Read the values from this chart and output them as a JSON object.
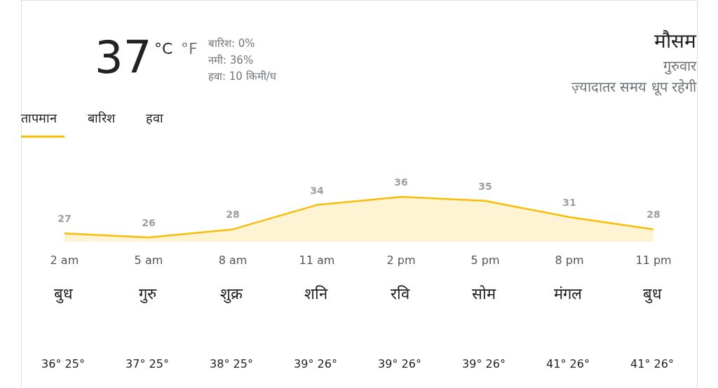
{
  "chart_data": {
    "type": "area",
    "title": "मौसम",
    "subtitle": "गुरुवार",
    "categories": [
      "2 am",
      "5 am",
      "8 am",
      "11 am",
      "2 pm",
      "5 pm",
      "8 pm",
      "11 pm"
    ],
    "series": [
      {
        "color": "#fbbc04",
        "values": [
          27,
          26,
          28,
          34,
          36,
          35,
          31,
          28
        ]
      }
    ],
    "data_labels": true,
    "annotations": [
      "37",
      "°C",
      "°F",
      "बारिश: 0%",
      "नमी: 36%",
      "हवा: 10 किमी/घ",
      "ज़्यादातर समय धूप रहेगी",
      "तापमान",
      "बारिश",
      "हवा",
      "बुध",
      "गुरु",
      "शुक्र",
      "शनि",
      "रवि",
      "सोम",
      "मंगल",
      "बुध",
      "36° 25°",
      "37° 25°",
      "38° 25°",
      "39° 26°",
      "39° 26°",
      "39° 26°",
      "41° 26°",
      "41° 26°"
    ]
  }
}
